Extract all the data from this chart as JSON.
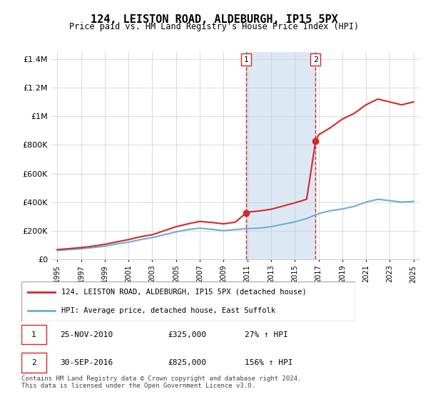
{
  "title": "124, LEISTON ROAD, ALDEBURGH, IP15 5PX",
  "subtitle": "Price paid vs. HM Land Registry's House Price Index (HPI)",
  "hpi_label": "HPI: Average price, detached house, East Suffolk",
  "property_label": "124, LEISTON ROAD, ALDEBURGH, IP15 5PX (detached house)",
  "footnote": "Contains HM Land Registry data © Crown copyright and database right 2024.\nThis data is licensed under the Open Government Licence v3.0.",
  "transaction1": {
    "num": 1,
    "date": "25-NOV-2010",
    "price": "£325,000",
    "hpi": "27% ↑ HPI"
  },
  "transaction2": {
    "num": 2,
    "date": "30-SEP-2016",
    "price": "£825,000",
    "hpi": "156% ↑ HPI"
  },
  "vline1_x": 2010.9,
  "vline2_x": 2016.75,
  "dot1": [
    2010.9,
    325000
  ],
  "dot2": [
    2016.75,
    825000
  ],
  "hpi_color": "#6baed6",
  "property_color": "#d62728",
  "vline_color": "#d62728",
  "shading_color": "#dce9f5",
  "ylim": [
    0,
    1450000
  ],
  "xlim_left": 1994.5,
  "xlim_right": 2025.5,
  "yticks": [
    0,
    200000,
    400000,
    600000,
    800000,
    1000000,
    1200000,
    1400000
  ],
  "ytick_labels": [
    "£0",
    "£200K",
    "£400K",
    "£600K",
    "£800K",
    "£1M",
    "£1.2M",
    "£1.4M"
  ],
  "xticks": [
    1995,
    1997,
    1999,
    2001,
    2003,
    2005,
    2007,
    2009,
    2011,
    2013,
    2015,
    2017,
    2019,
    2021,
    2023,
    2025
  ],
  "hpi_x": [
    1995,
    1996,
    1997,
    1998,
    1999,
    2000,
    2001,
    2002,
    2003,
    2004,
    2005,
    2006,
    2007,
    2008,
    2009,
    2010,
    2011,
    2012,
    2013,
    2014,
    2015,
    2016,
    2017,
    2018,
    2019,
    2020,
    2021,
    2022,
    2023,
    2024,
    2025
  ],
  "hpi_y": [
    62000,
    68000,
    74000,
    82000,
    92000,
    108000,
    120000,
    138000,
    152000,
    172000,
    192000,
    208000,
    218000,
    210000,
    200000,
    208000,
    215000,
    218000,
    228000,
    245000,
    262000,
    285000,
    320000,
    340000,
    352000,
    370000,
    400000,
    420000,
    410000,
    400000,
    405000
  ],
  "prop_x": [
    1995,
    1996,
    1997,
    1998,
    1999,
    2000,
    2001,
    2002,
    2003,
    2004,
    2005,
    2006,
    2007,
    2008,
    2009,
    2010,
    2010.9,
    2011,
    2012,
    2013,
    2014,
    2015,
    2016,
    2016.75,
    2017,
    2018,
    2019,
    2020,
    2021,
    2022,
    2023,
    2024,
    2025
  ],
  "prop_y": [
    68000,
    75000,
    82000,
    92000,
    105000,
    122000,
    138000,
    158000,
    172000,
    200000,
    228000,
    248000,
    265000,
    258000,
    248000,
    260000,
    325000,
    330000,
    338000,
    350000,
    372000,
    395000,
    420000,
    825000,
    870000,
    920000,
    980000,
    1020000,
    1080000,
    1120000,
    1100000,
    1080000,
    1100000
  ]
}
